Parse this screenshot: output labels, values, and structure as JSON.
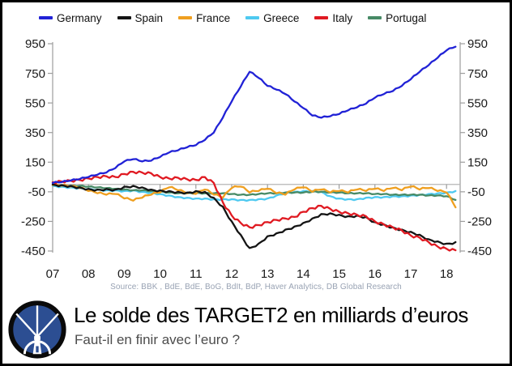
{
  "chart_data": {
    "type": "line",
    "title": "Le solde des TARGET2 en milliards d’euros",
    "subtitle": "Faut-il en finir avec l’euro ?",
    "source": "Source: BBK , BdE, BdE, BoG, BdIt, BdP, Haver Analytics, DB Global Research",
    "xlabel": "",
    "ylabel": "",
    "legend_position": "top",
    "grid": "zero-line-only",
    "axis_sides": "left-and-right",
    "axis_color": "#9d9d9d",
    "zero_line_color": "#b5b5b5",
    "tick_label_color": "#1a1a1a",
    "ylim": [
      -450,
      950
    ],
    "xlim": [
      2007,
      2018.4
    ],
    "y_ticks": [
      950,
      750,
      550,
      350,
      150,
      -50,
      -250,
      -450
    ],
    "x_tick_labels": [
      "07",
      "08",
      "09",
      "10",
      "11",
      "12",
      "13",
      "14",
      "15",
      "16",
      "17",
      "18"
    ],
    "x_tick_years": [
      2007,
      2008,
      2009,
      2010,
      2011,
      2012,
      2013,
      2014,
      2015,
      2016,
      2017,
      2018
    ],
    "x": [
      2007,
      2007.25,
      2007.5,
      2007.75,
      2008,
      2008.25,
      2008.5,
      2008.75,
      2009,
      2009.25,
      2009.5,
      2009.75,
      2010,
      2010.25,
      2010.5,
      2010.75,
      2011,
      2011.25,
      2011.5,
      2011.75,
      2012,
      2012.25,
      2012.5,
      2012.75,
      2013,
      2013.25,
      2013.5,
      2013.75,
      2014,
      2014.25,
      2014.5,
      2014.75,
      2015,
      2015.25,
      2015.5,
      2015.75,
      2016,
      2016.25,
      2016.5,
      2016.75,
      2017,
      2017.25,
      2017.5,
      2017.75,
      2018,
      2018.25
    ],
    "series": [
      {
        "name": "Germany",
        "color": "#2122d6",
        "values": [
          10,
          15,
          25,
          35,
          50,
          65,
          80,
          110,
          155,
          170,
          155,
          160,
          185,
          215,
          230,
          250,
          265,
          300,
          350,
          450,
          560,
          660,
          760,
          720,
          665,
          640,
          610,
          560,
          515,
          465,
          450,
          460,
          475,
          500,
          520,
          545,
          585,
          610,
          630,
          665,
          710,
          760,
          805,
          855,
          905,
          930
        ]
      },
      {
        "name": "Spain",
        "color": "#141414",
        "values": [
          0,
          -5,
          -10,
          -20,
          -30,
          -35,
          -30,
          -35,
          -15,
          -10,
          -20,
          -35,
          -40,
          -45,
          -50,
          -55,
          -45,
          -50,
          -90,
          -150,
          -250,
          -340,
          -430,
          -400,
          -350,
          -330,
          -305,
          -285,
          -260,
          -230,
          -200,
          -195,
          -205,
          -215,
          -210,
          -220,
          -255,
          -270,
          -290,
          -305,
          -320,
          -340,
          -370,
          -385,
          -400,
          -390
        ]
      },
      {
        "name": "France",
        "color": "#ef9f1f",
        "values": [
          -5,
          -10,
          -15,
          -25,
          -45,
          -60,
          -70,
          -65,
          -95,
          -110,
          -90,
          -70,
          -55,
          -20,
          -40,
          -60,
          -65,
          -35,
          -70,
          -90,
          -25,
          -15,
          -55,
          -45,
          -30,
          -60,
          -70,
          -35,
          -20,
          -50,
          -35,
          -55,
          -45,
          -55,
          -35,
          -45,
          -30,
          -45,
          -25,
          -40,
          -15,
          -35,
          -25,
          -45,
          -55,
          -155
        ]
      },
      {
        "name": "Greece",
        "color": "#4ec9f0",
        "values": [
          -10,
          -15,
          -20,
          -25,
          -30,
          -35,
          -40,
          -40,
          -45,
          -40,
          -50,
          -55,
          -65,
          -75,
          -85,
          -90,
          -95,
          -95,
          -100,
          -100,
          -100,
          -105,
          -105,
          -100,
          -95,
          -75,
          -55,
          -50,
          -45,
          -45,
          -50,
          -80,
          -95,
          -100,
          -100,
          -90,
          -85,
          -85,
          -80,
          -80,
          -75,
          -70,
          -65,
          -60,
          -55,
          -45
        ]
      },
      {
        "name": "Italy",
        "color": "#e01a22",
        "values": [
          15,
          20,
          25,
          30,
          40,
          50,
          55,
          50,
          70,
          85,
          80,
          75,
          50,
          40,
          45,
          35,
          30,
          50,
          10,
          -120,
          -210,
          -260,
          -290,
          -275,
          -255,
          -240,
          -230,
          -220,
          -185,
          -160,
          -145,
          -165,
          -185,
          -195,
          -205,
          -215,
          -250,
          -270,
          -290,
          -310,
          -345,
          -360,
          -390,
          -420,
          -435,
          -445
        ]
      },
      {
        "name": "Portugal",
        "color": "#478a66",
        "values": [
          -5,
          -5,
          -10,
          -10,
          -15,
          -20,
          -25,
          -30,
          -35,
          -40,
          -40,
          -45,
          -50,
          -55,
          -60,
          -60,
          -60,
          -60,
          -60,
          -60,
          -65,
          -70,
          -70,
          -65,
          -60,
          -60,
          -55,
          -55,
          -55,
          -50,
          -50,
          -55,
          -55,
          -60,
          -60,
          -60,
          -65,
          -65,
          -70,
          -70,
          -70,
          -70,
          -75,
          -75,
          -80,
          -105
        ]
      }
    ],
    "draw_order": [
      3,
      5,
      2,
      1,
      4,
      0
    ]
  },
  "footer": {
    "title": "Le solde des TARGET2 en milliards d’euros",
    "subtitle": "Faut-il en finir avec l’euro ?",
    "logo": {
      "name": "lighthouse-logo",
      "ring_color": "#0a0a0a",
      "fill_color": "#2c4e92",
      "beam_color": "#ffffff"
    }
  }
}
